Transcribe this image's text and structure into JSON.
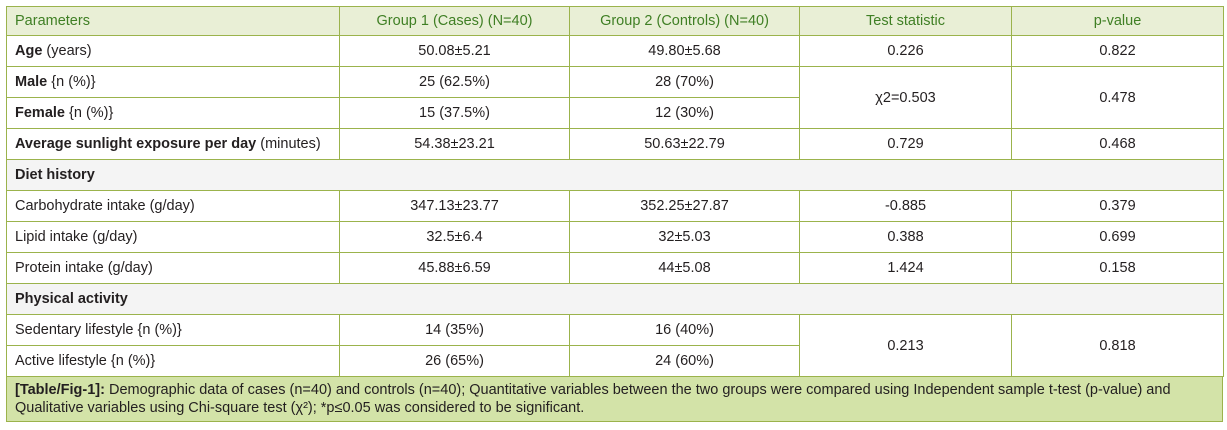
{
  "headers": [
    "Parameters",
    "Group 1 (Cases) (N=40)",
    "Group 2 (Controls) (N=40)",
    "Test statistic",
    "p-value"
  ],
  "rows": {
    "age": {
      "label_bold": "Age",
      "label_rest": " (years)",
      "g1": "50.08±5.21",
      "g2": "49.80±5.68",
      "stat": "0.226",
      "p": "0.822"
    },
    "male": {
      "label_bold": "Male",
      "label_rest": " {n (%)}",
      "g1": "25 (62.5%)",
      "g2": "28 (70%)"
    },
    "female": {
      "label_bold": "Female",
      "label_rest": " {n (%)}",
      "g1": "15 (37.5%)",
      "g2": "12 (30%)"
    },
    "gender_stat": {
      "stat": "χ2=0.503",
      "p": "0.478"
    },
    "sunlight": {
      "label_bold": "Average sunlight exposure per day",
      "label_rest": " (minutes)",
      "g1": "54.38±23.21",
      "g2": "50.63±22.79",
      "stat": "0.729",
      "p": "0.468"
    },
    "diet_section": "Diet history",
    "carb": {
      "label": "Carbohydrate intake (g/day)",
      "g1": "347.13±23.77",
      "g2": "352.25±27.87",
      "stat": "-0.885",
      "p": "0.379"
    },
    "lipid": {
      "label": "Lipid intake (g/day)",
      "g1": "32.5±6.4",
      "g2": "32±5.03",
      "stat": "0.388",
      "p": "0.699"
    },
    "protein": {
      "label": "Protein intake (g/day)",
      "g1": "45.88±6.59",
      "g2": "44±5.08",
      "stat": "1.424",
      "p": "0.158"
    },
    "activity_section": "Physical activity",
    "sedentary": {
      "label": "Sedentary lifestyle {n (%)}",
      "g1": "14 (35%)",
      "g2": "16 (40%)"
    },
    "active": {
      "label": "Active lifestyle {n (%)}",
      "g1": "26 (65%)",
      "g2": "24 (60%)"
    },
    "activity_stat": {
      "stat": "0.213",
      "p": "0.818"
    }
  },
  "caption": {
    "tag": "[Table/Fig-1]:",
    "text": " Demographic data of cases (n=40) and controls (n=40); Quantitative variables between the two groups were compared using Independent sample t-test (p-value) and Qualitative variables using Chi-square test (χ²); *p≤0.05 was considered to be significant."
  }
}
